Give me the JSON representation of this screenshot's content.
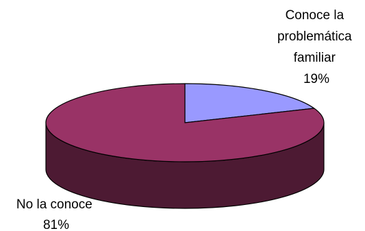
{
  "chart_data": {
    "type": "pie",
    "style": "3d",
    "title": "",
    "categories": [
      "Conoce la problemática familiar",
      "No la conoce"
    ],
    "values": [
      19,
      81
    ],
    "unit": "%",
    "colors": {
      "Conoce la problemática familiar": "#9999ff",
      "No la conoce": "#993366"
    },
    "side_colors": {
      "Conoce la problemática familiar": "#4d4d80",
      "No la conoce": "#4d1a33"
    },
    "legend": "none",
    "labels": [
      {
        "lines": [
          "Conoce la",
          "problemática",
          "familiar"
        ],
        "value_text": "19%"
      },
      {
        "lines": [
          "No la conoce"
        ],
        "value_text": "81%"
      }
    ]
  }
}
